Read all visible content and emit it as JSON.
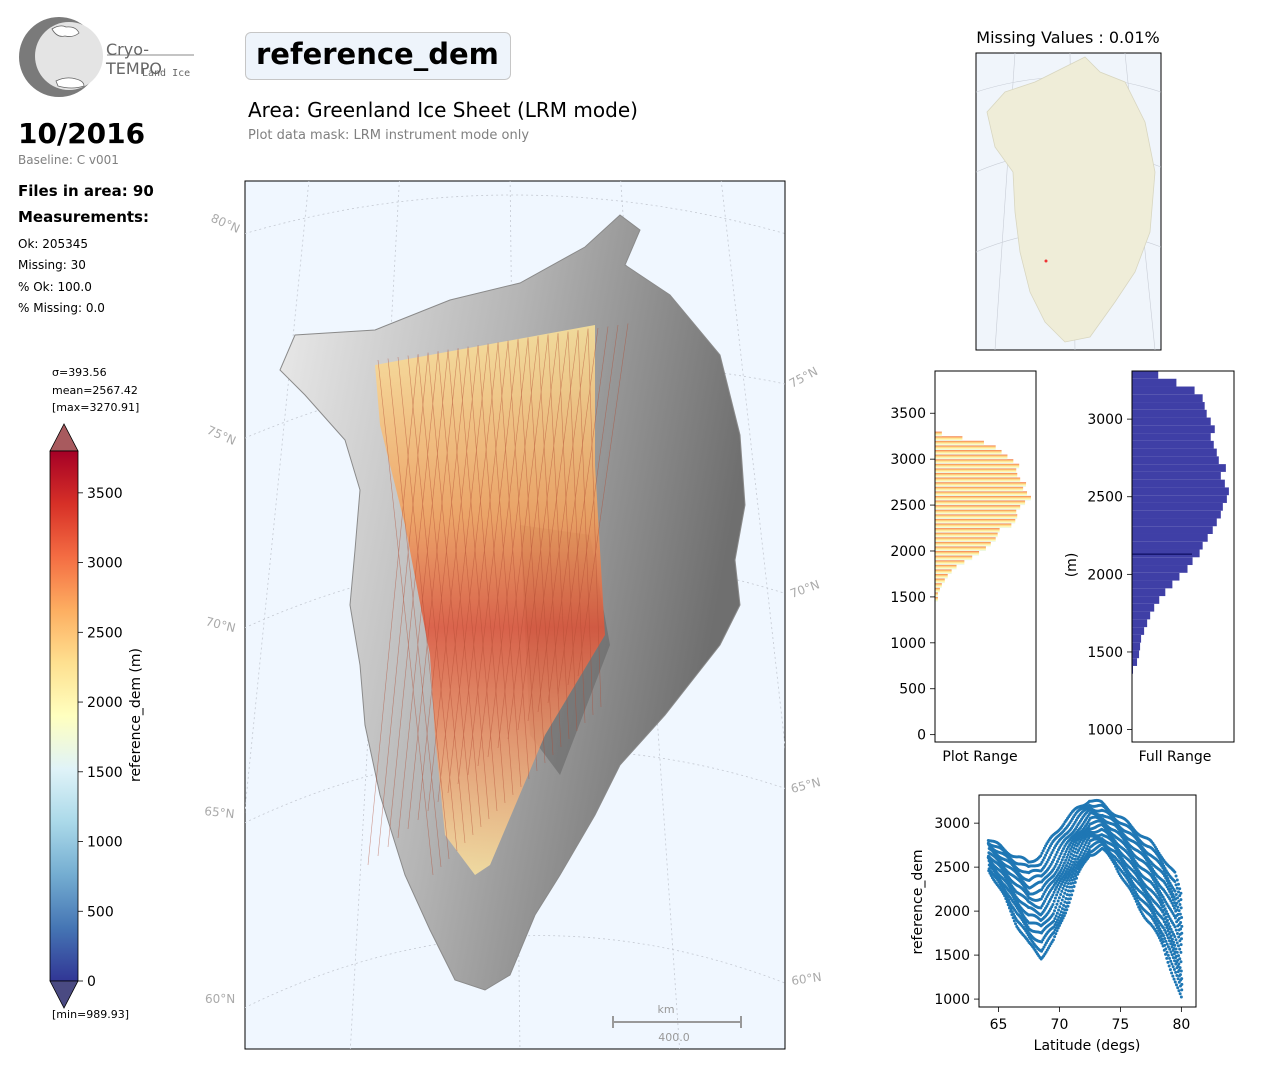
{
  "logo": {
    "name": "Cryo-TEMPO",
    "subtitle": "Land Ice"
  },
  "header": {
    "date": "10/2016",
    "baseline": "Baseline: C v001",
    "files": "Files in area: 90",
    "measurements_heading": "Measurements:",
    "stats": [
      "Ok: 205345",
      "Missing: 30",
      "% Ok: 100.0",
      "% Missing: 0.0"
    ]
  },
  "title": {
    "parameter": "reference_dem",
    "area": "Area: Greenland Ice Sheet (LRM mode)",
    "mask": "Plot data mask: LRM instrument mode only"
  },
  "colorbar": {
    "sigma": "σ=393.56",
    "mean": "mean=2567.42",
    "max": "[max=3270.91]",
    "min": "[min=989.93]",
    "label": "reference_dem (m)",
    "ticks": [
      "0",
      "500",
      "1000",
      "1500",
      "2000",
      "2500",
      "3000",
      "3500"
    ]
  },
  "map": {
    "lat_labels_left": [
      "80°N",
      "75°N",
      "70°N",
      "65°N",
      "60°N"
    ],
    "lat_labels_right": [
      "75°N",
      "70°N",
      "65°N",
      "60°N"
    ],
    "scale_unit": "km",
    "scale_value": "400.0"
  },
  "missing_map": {
    "title": "Missing Values : 0.01%"
  },
  "chart_data": [
    {
      "type": "bar",
      "title": "",
      "xlabel": "Plot Range",
      "ylabel": "",
      "orientation": "horizontal",
      "ylim": [
        -80,
        3960
      ],
      "yticks": [
        0,
        500,
        1000,
        1500,
        2000,
        2500,
        3000,
        3500
      ],
      "bins": [
        1450,
        1500,
        1550,
        1600,
        1650,
        1700,
        1750,
        1800,
        1850,
        1900,
        1950,
        2000,
        2050,
        2100,
        2150,
        2200,
        2250,
        2300,
        2350,
        2400,
        2450,
        2500,
        2550,
        2600,
        2650,
        2700,
        2750,
        2800,
        2850,
        2900,
        2950,
        3000,
        3050,
        3100,
        3150,
        3200,
        3250
      ],
      "counts": [
        3,
        3,
        5,
        7,
        10,
        13,
        17,
        22,
        30,
        38,
        45,
        52,
        57,
        62,
        64,
        66,
        78,
        82,
        84,
        83,
        87,
        92,
        98,
        94,
        90,
        93,
        87,
        84,
        83,
        86,
        80,
        74,
        68,
        62,
        50,
        28,
        7
      ]
    },
    {
      "type": "bar",
      "title": "",
      "xlabel": "Full Range",
      "ylabel": "(m)",
      "orientation": "horizontal",
      "ylim": [
        920,
        3310
      ],
      "yticks": [
        1000,
        1500,
        2000,
        2500,
        3000
      ],
      "bins": [
        1360,
        1410,
        1460,
        1510,
        1560,
        1610,
        1660,
        1710,
        1760,
        1810,
        1860,
        1910,
        1960,
        2010,
        2060,
        2110,
        2160,
        2210,
        2260,
        2310,
        2360,
        2410,
        2460,
        2510,
        2560,
        2610,
        2660,
        2710,
        2760,
        2810,
        2860,
        2910,
        2960,
        3010,
        3060,
        3110,
        3160,
        3210,
        3260
      ],
      "counts": [
        1,
        5,
        7,
        8,
        9,
        12,
        15,
        18,
        22,
        27,
        33,
        40,
        47,
        55,
        60,
        67,
        70,
        75,
        80,
        84,
        88,
        90,
        94,
        96,
        92,
        88,
        93,
        86,
        84,
        81,
        78,
        82,
        78,
        74,
        72,
        70,
        62,
        44,
        26
      ]
    },
    {
      "type": "scatter",
      "title": "",
      "xlabel": "Latitude (degs)",
      "ylabel": "reference_dem",
      "xlim": [
        63.4,
        81.2
      ],
      "ylim": [
        910,
        3320
      ],
      "xticks": [
        65,
        70,
        75,
        80
      ],
      "yticks": [
        1000,
        1500,
        2000,
        2500,
        3000
      ],
      "color": "#1f77b4",
      "upper_envelope": [
        [
          64.2,
          2820
        ],
        [
          65.5,
          2700
        ],
        [
          66.5,
          2620
        ],
        [
          67.5,
          2550
        ],
        [
          68.5,
          2640
        ],
        [
          69.5,
          2850
        ],
        [
          70.5,
          3030
        ],
        [
          71.5,
          3160
        ],
        [
          72.5,
          3270
        ],
        [
          73.5,
          3220
        ],
        [
          74.5,
          3120
        ],
        [
          75.5,
          3010
        ],
        [
          76.5,
          2900
        ],
        [
          77.5,
          2780
        ],
        [
          78.5,
          2620
        ],
        [
          79.5,
          2420
        ],
        [
          80.2,
          2100
        ]
      ],
      "lower_envelope": [
        [
          64.2,
          2480
        ],
        [
          65.5,
          2150
        ],
        [
          66.5,
          1850
        ],
        [
          67.5,
          1620
        ],
        [
          68.5,
          1480
        ],
        [
          69.5,
          1650
        ],
        [
          70.5,
          2000
        ],
        [
          71.5,
          2400
        ],
        [
          72.5,
          2650
        ],
        [
          73.5,
          2700
        ],
        [
          74.5,
          2550
        ],
        [
          75.5,
          2300
        ],
        [
          76.5,
          2050
        ],
        [
          77.5,
          1850
        ],
        [
          78.5,
          1600
        ],
        [
          79.5,
          1200
        ],
        [
          80.0,
          1000
        ]
      ]
    }
  ]
}
